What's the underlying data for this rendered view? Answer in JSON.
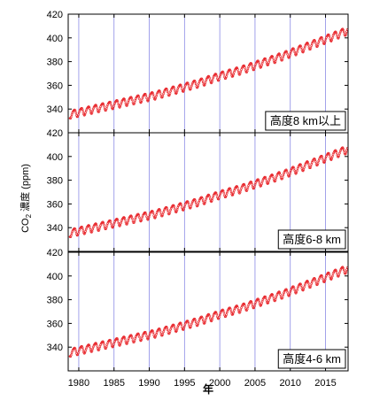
{
  "chart_data": {
    "type": "scatter",
    "xlabel": "年",
    "ylabel": "CO2 濃度 (ppm)",
    "ylabel_main": "CO",
    "ylabel_sub": "2",
    "ylabel_rest": " 濃度 (ppm)",
    "xlim": [
      1978.5,
      2018.2
    ],
    "ylim": [
      320,
      420
    ],
    "x_ticks": [
      1980,
      1985,
      1990,
      1995,
      2000,
      2005,
      2010,
      2015
    ],
    "y_ticks": [
      340,
      360,
      380,
      400,
      420
    ],
    "grid": "vertical lines at x ticks",
    "marker_color": "#e8252a",
    "grid_color": "#8a8ae6",
    "panels": [
      {
        "label": "高度8 km以上",
        "x": [
          1979,
          1982,
          1985,
          1988,
          1991,
          1994,
          1997,
          2000,
          2003,
          2006,
          2009,
          2012,
          2015,
          2018
        ],
        "y": [
          336,
          340,
          344,
          348,
          352,
          357,
          362,
          368,
          373,
          379,
          385,
          392,
          399,
          406
        ]
      },
      {
        "label": "高度6-8 km",
        "x": [
          1979,
          1982,
          1985,
          1988,
          1991,
          1994,
          1997,
          2000,
          2003,
          2006,
          2009,
          2012,
          2015,
          2018
        ],
        "y": [
          336,
          340,
          344,
          348,
          352,
          357,
          362,
          368,
          373,
          379,
          385,
          392,
          399,
          406
        ]
      },
      {
        "label": "高度4-6 km",
        "x": [
          1979,
          1982,
          1985,
          1988,
          1991,
          1994,
          1997,
          2000,
          2003,
          2006,
          2009,
          2012,
          2015,
          2018
        ],
        "y": [
          336,
          340,
          344,
          348,
          352,
          357,
          362,
          368,
          373,
          379,
          385,
          392,
          399,
          406
        ]
      }
    ]
  }
}
